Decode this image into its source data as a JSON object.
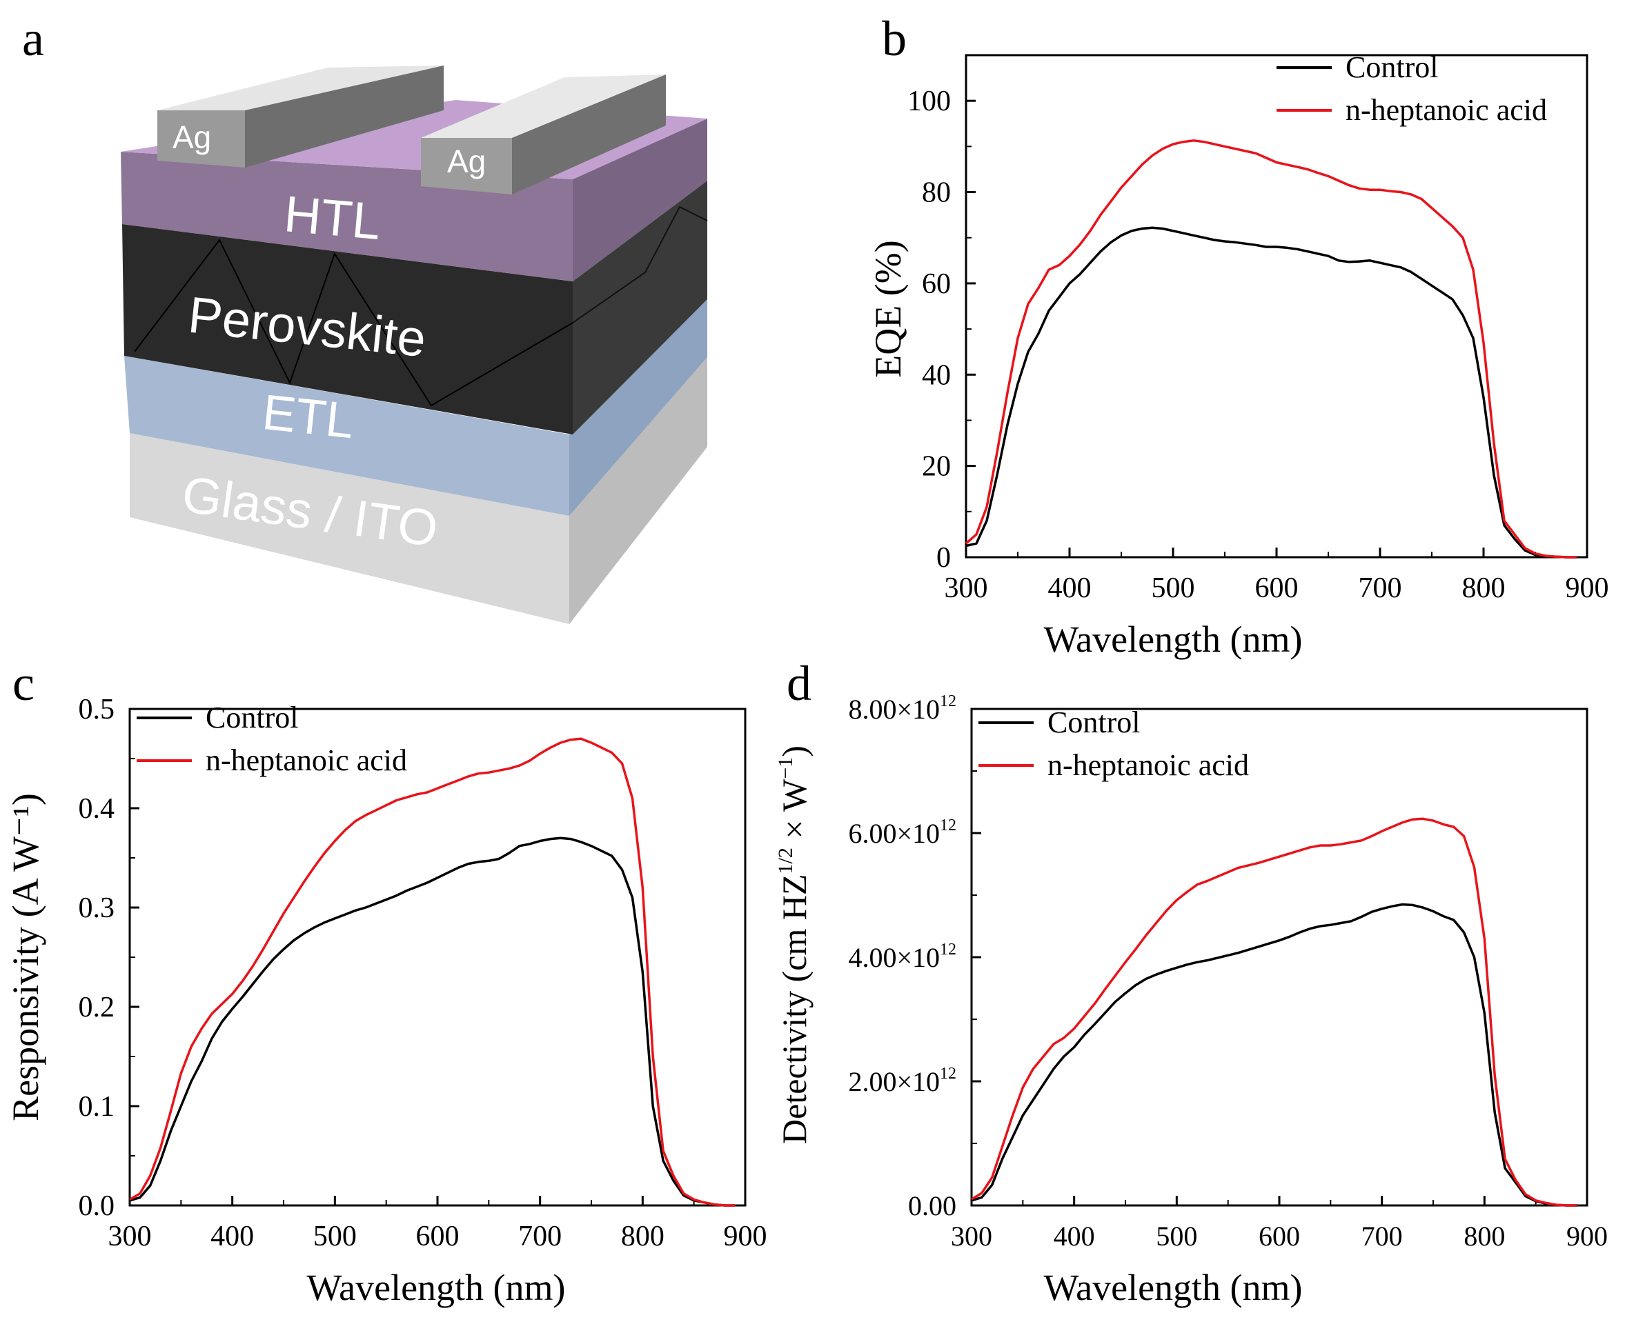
{
  "panels": {
    "a": "a",
    "b": "b",
    "c": "c",
    "d": "d"
  },
  "device": {
    "electrode_left": "Ag",
    "electrode_right": "Ag",
    "htl": "HTL",
    "perovskite": "Perovskite",
    "etl": "ETL",
    "substrate": "Glass / ITO"
  },
  "colors": {
    "control": "#000000",
    "heptanoic": "#e8141b",
    "htl_front": "#8d7696",
    "perovskite_front": "#2a2a2a",
    "etl_front": "#a5b8d1",
    "substrate_front": "#d9d9d9"
  },
  "chart_data": [
    {
      "id": "eqe",
      "type": "line",
      "xlabel": "Wavelength (nm)",
      "ylabel": "EQE (%)",
      "xlim": [
        300,
        900
      ],
      "ylim": [
        0,
        110
      ],
      "xticks": [
        300,
        400,
        500,
        600,
        700,
        800,
        900
      ],
      "yticks": [
        0,
        20,
        40,
        60,
        80,
        100
      ],
      "ytick_labels": [
        "0",
        "20",
        "40",
        "60",
        "80",
        "100"
      ],
      "legend": {
        "position": "top-right",
        "items": [
          "Control",
          "n-heptanoic acid"
        ]
      },
      "x": [
        300,
        310,
        320,
        330,
        340,
        350,
        360,
        370,
        380,
        390,
        400,
        410,
        420,
        430,
        440,
        450,
        460,
        470,
        480,
        490,
        500,
        510,
        520,
        530,
        540,
        550,
        560,
        570,
        580,
        590,
        600,
        610,
        620,
        630,
        640,
        650,
        660,
        670,
        680,
        690,
        700,
        710,
        720,
        730,
        740,
        750,
        760,
        770,
        780,
        790,
        800,
        810,
        820,
        830,
        840,
        850,
        860,
        870,
        880,
        890
      ],
      "series": [
        {
          "name": "Control",
          "color": "#000000",
          "values": [
            2.5,
            3,
            8,
            18,
            29,
            38,
            45,
            49,
            54,
            57,
            60,
            62,
            64.5,
            67,
            69,
            70.5,
            71.5,
            72,
            72.2,
            72,
            71.5,
            71,
            70.5,
            70,
            69.5,
            69.2,
            69,
            68.7,
            68.4,
            68,
            68,
            67.8,
            67.5,
            67,
            66.5,
            66,
            65,
            64.7,
            64.8,
            65,
            64.5,
            64,
            63.5,
            62.5,
            61,
            59.5,
            58,
            56.5,
            53,
            48,
            35,
            18,
            7,
            4,
            1.5,
            0.5,
            0.2,
            0.1,
            0,
            0
          ]
        },
        {
          "name": "n-heptanoic acid",
          "color": "#e8141b",
          "values": [
            3,
            5,
            11,
            23,
            36,
            48,
            55.5,
            59,
            63,
            64,
            66,
            68.5,
            71.5,
            75,
            78,
            81,
            83.5,
            86,
            88,
            89.5,
            90.5,
            91,
            91.3,
            91,
            90.5,
            90,
            89.5,
            89,
            88.5,
            87.5,
            86.5,
            86,
            85.5,
            85,
            84.2,
            83.5,
            82.5,
            81.5,
            80.8,
            80.5,
            80.5,
            80.2,
            80,
            79.5,
            78.5,
            76.5,
            74.5,
            72.5,
            70,
            63,
            47,
            25,
            8,
            5,
            2,
            0.8,
            0.3,
            0.1,
            0,
            0
          ]
        }
      ]
    },
    {
      "id": "responsivity",
      "type": "line",
      "xlabel": "Wavelength (nm)",
      "ylabel": "Responsivity (A W⁻¹)",
      "xlim": [
        300,
        900
      ],
      "ylim": [
        0,
        0.5
      ],
      "xticks": [
        300,
        400,
        500,
        600,
        700,
        800,
        900
      ],
      "yticks": [
        0,
        0.1,
        0.2,
        0.3,
        0.4,
        0.5
      ],
      "ytick_labels": [
        "0.0",
        "0.1",
        "0.2",
        "0.3",
        "0.4",
        "0.5"
      ],
      "legend": {
        "position": "top-left",
        "items": [
          "Control",
          "n-heptanoic acid"
        ]
      },
      "x": [
        300,
        310,
        320,
        330,
        340,
        350,
        360,
        370,
        380,
        390,
        400,
        410,
        420,
        430,
        440,
        450,
        460,
        470,
        480,
        490,
        500,
        510,
        520,
        530,
        540,
        550,
        560,
        570,
        580,
        590,
        600,
        610,
        620,
        630,
        640,
        650,
        660,
        670,
        680,
        690,
        700,
        710,
        720,
        730,
        740,
        750,
        760,
        770,
        780,
        790,
        800,
        810,
        820,
        830,
        840,
        850,
        860,
        870,
        880,
        890
      ],
      "series": [
        {
          "name": "Control",
          "color": "#000000",
          "values": [
            0.005,
            0.008,
            0.02,
            0.045,
            0.075,
            0.1,
            0.125,
            0.145,
            0.168,
            0.185,
            0.198,
            0.21,
            0.223,
            0.236,
            0.248,
            0.258,
            0.267,
            0.274,
            0.28,
            0.285,
            0.289,
            0.293,
            0.297,
            0.3,
            0.304,
            0.308,
            0.312,
            0.317,
            0.321,
            0.325,
            0.33,
            0.335,
            0.34,
            0.344,
            0.346,
            0.347,
            0.349,
            0.355,
            0.362,
            0.364,
            0.367,
            0.369,
            0.37,
            0.369,
            0.366,
            0.362,
            0.357,
            0.352,
            0.338,
            0.31,
            0.235,
            0.1,
            0.045,
            0.025,
            0.01,
            0.005,
            0.003,
            0.001,
            0,
            0
          ]
        },
        {
          "name": "n-heptanoic acid",
          "color": "#e8141b",
          "values": [
            0.006,
            0.012,
            0.03,
            0.058,
            0.095,
            0.133,
            0.16,
            0.178,
            0.193,
            0.203,
            0.213,
            0.226,
            0.241,
            0.258,
            0.276,
            0.294,
            0.31,
            0.326,
            0.341,
            0.355,
            0.367,
            0.378,
            0.387,
            0.393,
            0.398,
            0.403,
            0.408,
            0.411,
            0.414,
            0.416,
            0.42,
            0.424,
            0.428,
            0.432,
            0.435,
            0.436,
            0.438,
            0.44,
            0.443,
            0.448,
            0.455,
            0.461,
            0.466,
            0.469,
            0.47,
            0.466,
            0.461,
            0.456,
            0.445,
            0.41,
            0.32,
            0.15,
            0.055,
            0.03,
            0.012,
            0.006,
            0.003,
            0.001,
            0,
            0
          ]
        }
      ]
    },
    {
      "id": "detectivity",
      "type": "line",
      "xlabel": "Wavelength (nm)",
      "ylabel": "Detectivity (cm HZ^1/2 × W⁻¹)",
      "ylabel_parts": {
        "prefix": "Detectivity (cm HZ",
        "sup1": "1/2",
        "middle": " × W",
        "sup2": "−1",
        "suffix": ")"
      },
      "xlim": [
        300,
        900
      ],
      "ylim": [
        0,
        8000000000000.0
      ],
      "xticks": [
        300,
        400,
        500,
        600,
        700,
        800,
        900
      ],
      "yticks": [
        0,
        2000000000000.0,
        4000000000000.0,
        6000000000000.0,
        8000000000000.0
      ],
      "ytick_labels": [
        "0.00",
        "2.00×10",
        "4.00×10",
        "6.00×10",
        "8.00×10"
      ],
      "ytick_exponents": [
        "",
        "12",
        "12",
        "12",
        "12"
      ],
      "legend": {
        "position": "top-left",
        "items": [
          "Control",
          "n-heptanoic acid"
        ]
      },
      "x": [
        300,
        310,
        320,
        330,
        340,
        350,
        360,
        370,
        380,
        390,
        400,
        410,
        420,
        430,
        440,
        450,
        460,
        470,
        480,
        490,
        500,
        510,
        520,
        530,
        540,
        550,
        560,
        570,
        580,
        590,
        600,
        610,
        620,
        630,
        640,
        650,
        660,
        670,
        680,
        690,
        700,
        710,
        720,
        730,
        740,
        750,
        760,
        770,
        780,
        790,
        800,
        810,
        820,
        830,
        840,
        850,
        860,
        870,
        880,
        890
      ],
      "series": [
        {
          "name": "Control",
          "color": "#000000",
          "values": [
            80000000000.0,
            130000000000.0,
            330000000000.0,
            750000000000.0,
            1100000000000.0,
            1450000000000.0,
            1700000000000.0,
            1950000000000.0,
            2200000000000.0,
            2400000000000.0,
            2550000000000.0,
            2750000000000.0,
            2920000000000.0,
            3100000000000.0,
            3280000000000.0,
            3420000000000.0,
            3550000000000.0,
            3650000000000.0,
            3720000000000.0,
            3780000000000.0,
            3830000000000.0,
            3880000000000.0,
            3920000000000.0,
            3950000000000.0,
            3990000000000.0,
            4030000000000.0,
            4070000000000.0,
            4120000000000.0,
            4170000000000.0,
            4220000000000.0,
            4270000000000.0,
            4330000000000.0,
            4400000000000.0,
            4460000000000.0,
            4500000000000.0,
            4520000000000.0,
            4550000000000.0,
            4580000000000.0,
            4650000000000.0,
            4730000000000.0,
            4780000000000.0,
            4820000000000.0,
            4850000000000.0,
            4840000000000.0,
            4800000000000.0,
            4740000000000.0,
            4660000000000.0,
            4600000000000.0,
            4400000000000.0,
            4000000000000.0,
            3100000000000.0,
            1500000000000.0,
            600000000000.0,
            380000000000.0,
            150000000000.0,
            70000000000.0,
            30000000000.0,
            10000000000.0,
            0,
            0
          ]
        },
        {
          "name": "n-heptanoic acid",
          "color": "#e8141b",
          "values": [
            100000000000.0,
            200000000000.0,
            450000000000.0,
            950000000000.0,
            1450000000000.0,
            1900000000000.0,
            2200000000000.0,
            2400000000000.0,
            2600000000000.0,
            2700000000000.0,
            2850000000000.0,
            3050000000000.0,
            3250000000000.0,
            3480000000000.0,
            3700000000000.0,
            3920000000000.0,
            4130000000000.0,
            4350000000000.0,
            4550000000000.0,
            4750000000000.0,
            4920000000000.0,
            5050000000000.0,
            5170000000000.0,
            5230000000000.0,
            5300000000000.0,
            5370000000000.0,
            5440000000000.0,
            5480000000000.0,
            5520000000000.0,
            5570000000000.0,
            5620000000000.0,
            5670000000000.0,
            5720000000000.0,
            5770000000000.0,
            5800000000000.0,
            5800000000000.0,
            5820000000000.0,
            5850000000000.0,
            5880000000000.0,
            5950000000000.0,
            6030000000000.0,
            6100000000000.0,
            6170000000000.0,
            6220000000000.0,
            6230000000000.0,
            6200000000000.0,
            6140000000000.0,
            6100000000000.0,
            5950000000000.0,
            5450000000000.0,
            4300000000000.0,
            2100000000000.0,
            750000000000.0,
            420000000000.0,
            180000000000.0,
            80000000000.0,
            40000000000.0,
            10000000000.0,
            0,
            0
          ]
        }
      ]
    }
  ]
}
